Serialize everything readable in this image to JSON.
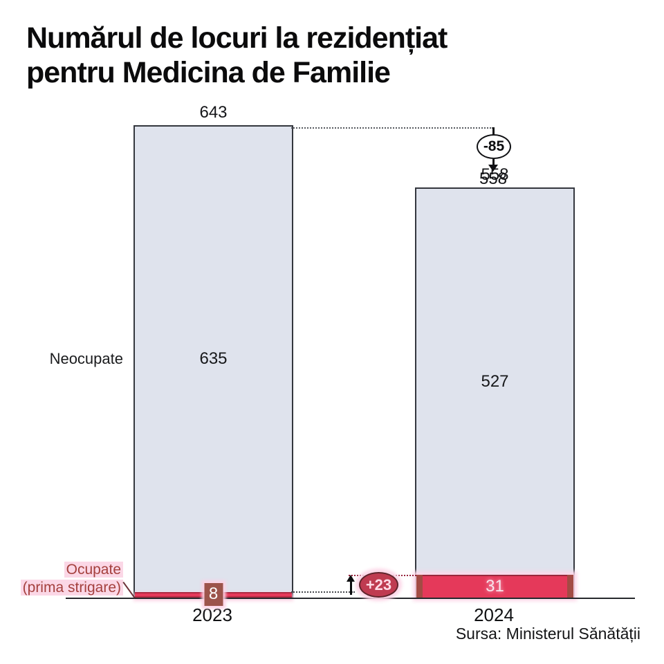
{
  "title": "Numărul de locuri la rezidențiat\npentru Medicina de Familie",
  "source": "Sursa: Ministerul Sănătății",
  "row_labels": {
    "neocupate": "Neocupate",
    "ocupate_line1": "Ocupate",
    "ocupate_line2": "(prima strigare)"
  },
  "annotations": {
    "delta_total": "-85",
    "delta_ocupate": "+23"
  },
  "colors": {
    "neocupate_fill": "#dfe3ed",
    "ocupate_fill": "#e5395a",
    "bar_border": "#33363d",
    "highlight_pink": "#fbd5e6",
    "ocupate_label_text": "#a4403d",
    "delta_total_badge_fill": "#ffffff",
    "delta_ocupate_badge_fill": "#bf3b51"
  },
  "chart_data": {
    "type": "bar",
    "stacked": true,
    "title": "Numărul de locuri la rezidențiat pentru Medicina de Familie",
    "source": "Sursa: Ministerul Sănătății",
    "categories": [
      "2023",
      "2024"
    ],
    "series": [
      {
        "name": "Neocupate",
        "values": [
          635,
          527
        ],
        "color": "#dfe3ed"
      },
      {
        "name": "Ocupate (prima strigare)",
        "values": [
          8,
          31
        ],
        "color": "#e5395a"
      }
    ],
    "totals": [
      643,
      558
    ],
    "total_change": -85,
    "ocupate_change": 23,
    "ylim": [
      0,
      643
    ],
    "grid": false,
    "legend_position": "left row labels",
    "xlabel": "",
    "ylabel": ""
  }
}
